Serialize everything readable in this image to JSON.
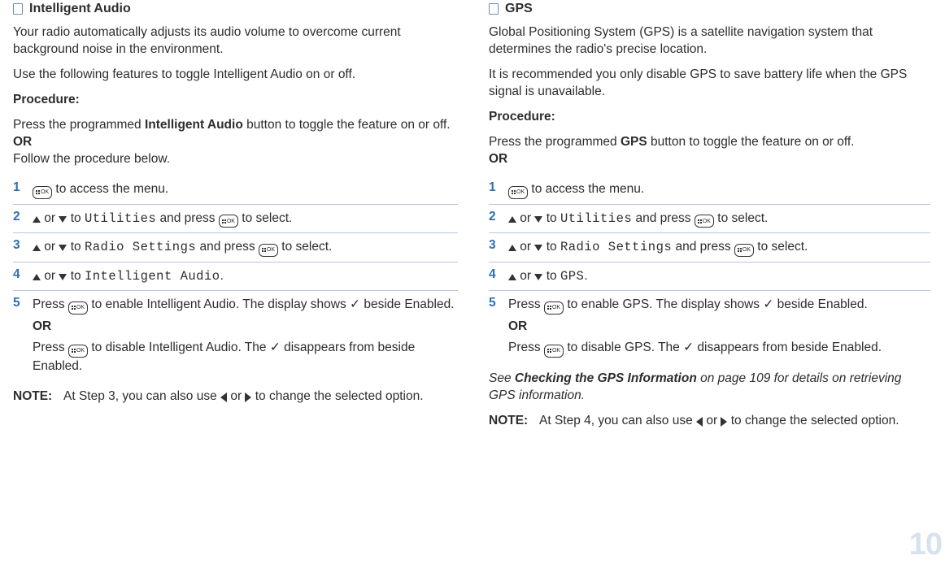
{
  "left": {
    "title": "Intelligent Audio",
    "intro1": "Your radio automatically adjusts its audio volume to overcome current background noise in the environment.",
    "intro2": "Use the following features to toggle Intelligent Audio on or off.",
    "procLabel": "Procedure:",
    "procText1a": "Press the programmed ",
    "procText1b": "Intelligent Audio",
    "procText1c": " button to toggle the feature on or off.",
    "or": "OR",
    "procText2": "Follow the procedure below.",
    "steps": {
      "s1": " to access the menu.",
      "s2a": " or ",
      "s2b": " to ",
      "s2menu": "Utilities",
      "s2c": " and press ",
      "s2d": " to select.",
      "s3menu": "Radio Settings",
      "s4menu": "Intelligent Audio",
      "s5a": "Press ",
      "s5b": " to enable Intelligent Audio. The display shows ✓ beside Enabled.",
      "s5or": "OR",
      "s5c": " to disable Intelligent Audio. The ✓ disappears from beside Enabled."
    },
    "noteLabel": "NOTE:",
    "noteText1": "At Step 3, you can also use ",
    "noteText2": " or ",
    "noteText3": " to change the selected option."
  },
  "right": {
    "title": "GPS",
    "intro1": "Global Positioning System (GPS) is a satellite navigation system that determines the radio's precise location.",
    "intro2": "It is recommended you only disable GPS to save battery life when the GPS signal is unavailable.",
    "procLabel": "Procedure:",
    "procText1a": "Press the programmed ",
    "procText1b": "GPS",
    "procText1c": " button to toggle the feature on or off.",
    "or": "OR",
    "steps": {
      "s1": " to access the menu.",
      "s2menu": "Utilities",
      "s3menu": "Radio Settings",
      "s4menu": "GPS",
      "s5b": " to enable GPS. The display shows ✓ beside Enabled.",
      "s5or": "OR",
      "s5c": " to disable GPS. The ✓ disappears from beside Enabled."
    },
    "see1": "See ",
    "see2": "Checking the GPS Information",
    "see3": " on page 109 for details on retrieving GPS information.",
    "noteLabel": "NOTE:",
    "noteText1": "At Step 4, you can also use ",
    "noteText2": " or ",
    "noteText3": " to change the selected option."
  },
  "pageNumber": "10",
  "okLabel": "OK"
}
